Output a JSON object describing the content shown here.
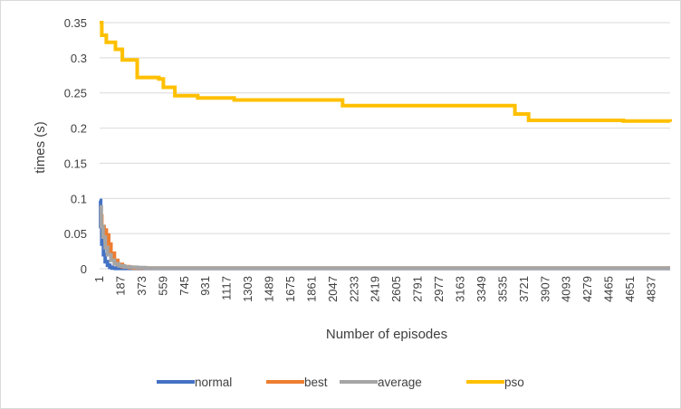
{
  "chart_data": {
    "type": "line",
    "title": "",
    "xlabel": "Number of episodes",
    "ylabel": "times (s)",
    "ylim": [
      0,
      0.35
    ],
    "xlim": [
      1,
      5000
    ],
    "yticks": [
      "0",
      "0.05",
      "0.1",
      "0.15",
      "0.2",
      "0.25",
      "0.3",
      "0.35"
    ],
    "ytick_values": [
      0,
      0.05,
      0.1,
      0.15,
      0.2,
      0.25,
      0.3,
      0.35
    ],
    "xticks": [
      "1",
      "187",
      "373",
      "559",
      "745",
      "931",
      "1117",
      "1303",
      "1489",
      "1675",
      "1861",
      "2047",
      "2233",
      "2419",
      "2605",
      "2791",
      "2977",
      "3163",
      "3349",
      "3535",
      "3721",
      "3907",
      "4093",
      "4279",
      "4465",
      "4651",
      "4837"
    ],
    "xtick_values": [
      1,
      187,
      373,
      559,
      745,
      931,
      1117,
      1303,
      1489,
      1675,
      1861,
      2047,
      2233,
      2419,
      2605,
      2791,
      2977,
      3163,
      3349,
      3535,
      3721,
      3907,
      4093,
      4279,
      4465,
      4651,
      4837
    ],
    "grid": "horizontal",
    "legend_position": "bottom",
    "series": [
      {
        "name": "normal",
        "color": "#4472c4",
        "x": [
          1,
          10,
          20,
          35,
          50,
          70,
          90,
          110,
          140,
          5000
        ],
        "y": [
          0.097,
          0.06,
          0.035,
          0.02,
          0.01,
          0.005,
          0.002,
          0.001,
          0.0005,
          0.0005
        ]
      },
      {
        "name": "best",
        "color": "#ed7d31",
        "x": [
          1,
          20,
          40,
          60,
          80,
          100,
          130,
          160,
          200,
          260,
          300,
          5000
        ],
        "y": [
          0.075,
          0.06,
          0.055,
          0.048,
          0.035,
          0.022,
          0.012,
          0.006,
          0.003,
          0.0015,
          0.001,
          0.001
        ]
      },
      {
        "name": "average",
        "color": "#a5a5a5",
        "x": [
          1,
          15,
          30,
          50,
          70,
          100,
          130,
          170,
          220,
          280,
          330,
          400,
          5000
        ],
        "y": [
          0.088,
          0.06,
          0.045,
          0.03,
          0.02,
          0.012,
          0.007,
          0.004,
          0.0025,
          0.002,
          0.0015,
          0.001,
          0.001
        ]
      },
      {
        "name": "pso",
        "color": "#ffc000",
        "x": [
          1,
          20,
          60,
          140,
          200,
          300,
          330,
          520,
          560,
          660,
          860,
          1180,
          2130,
          3640,
          3760,
          4590,
          5000
        ],
        "y": [
          0.35,
          0.332,
          0.322,
          0.312,
          0.297,
          0.297,
          0.272,
          0.27,
          0.258,
          0.246,
          0.243,
          0.24,
          0.232,
          0.22,
          0.211,
          0.21,
          0.209
        ]
      }
    ]
  }
}
